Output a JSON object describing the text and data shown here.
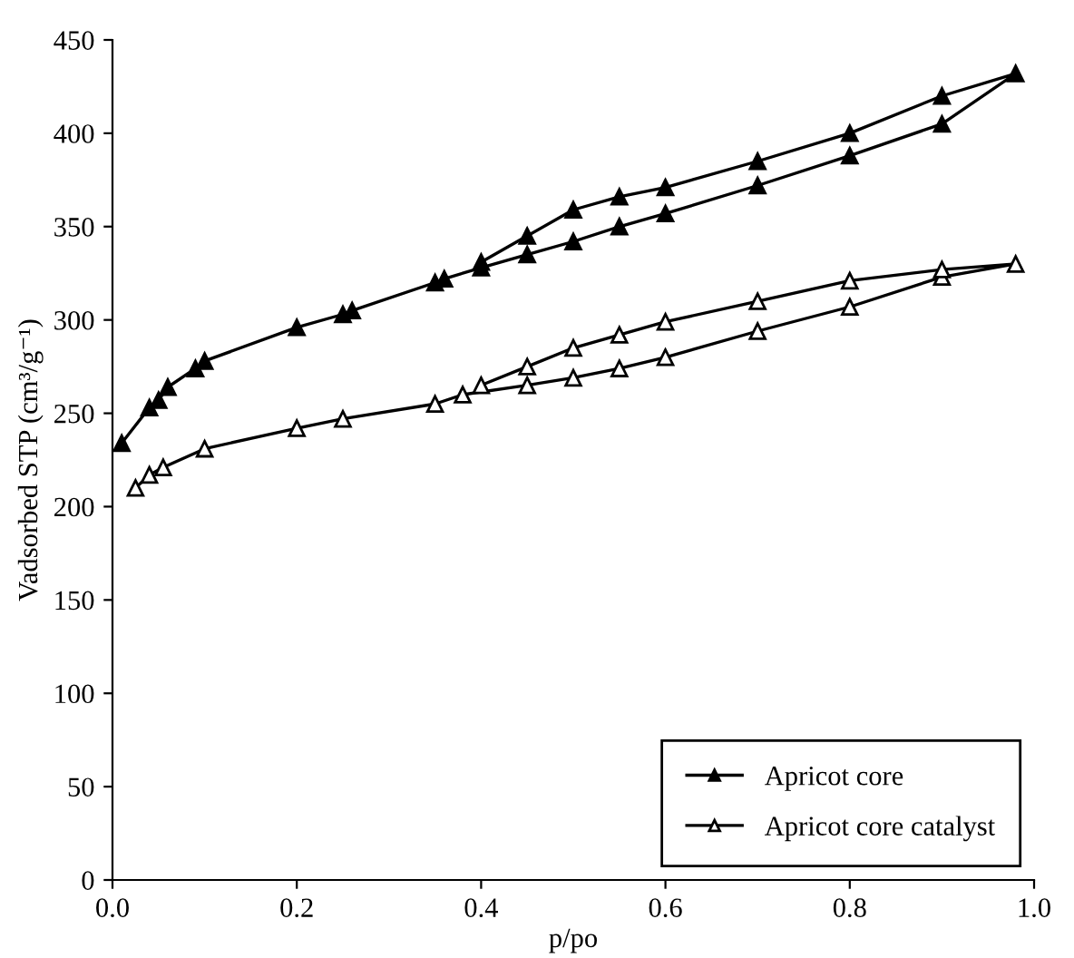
{
  "chart_data": {
    "type": "line",
    "xlabel": "p/po",
    "ylabel": "Vadsorbed STP (cm³/g⁻¹)",
    "xlim": [
      0,
      1
    ],
    "xticks": [
      {
        "value": 0,
        "label": "0.0"
      },
      {
        "value": 0.2,
        "label": "0.2"
      },
      {
        "value": 0.4,
        "label": "0.4"
      },
      {
        "value": 0.6,
        "label": "0.6"
      },
      {
        "value": 0.8,
        "label": "0.8"
      },
      {
        "value": 1,
        "label": "1.0"
      }
    ],
    "ylim": [
      0,
      450
    ],
    "yticks": [
      0,
      50,
      100,
      150,
      200,
      250,
      300,
      350,
      400,
      450
    ],
    "grid": false,
    "legend": "bottom right",
    "series": [
      {
        "name": "Apricot core",
        "color": "#000000",
        "marker": "triangle",
        "x": [
          0.01,
          0.04,
          0.05,
          0.06,
          0.09,
          0.1,
          0.2,
          0.25,
          0.26,
          0.35,
          0.36,
          0.4,
          0.45,
          0.5,
          0.55,
          0.6,
          0.7,
          0.8,
          0.9,
          0.98,
          0.9,
          0.8,
          0.7,
          0.6,
          0.55,
          0.5,
          0.45,
          0.4
        ],
        "values": [
          234,
          253,
          257,
          264,
          274,
          278,
          296,
          303,
          305,
          320,
          322,
          328,
          335,
          342,
          350,
          357,
          372,
          388,
          405,
          432,
          420,
          400,
          385,
          371,
          366,
          359,
          345,
          331
        ]
      },
      {
        "name": "Apricot core catalyst",
        "color": "#000000",
        "marker": "triangle_open",
        "x": [
          0.025,
          0.04,
          0.055,
          0.1,
          0.2,
          0.25,
          0.35,
          0.38,
          0.45,
          0.5,
          0.55,
          0.6,
          0.7,
          0.8,
          0.9,
          0.98,
          0.9,
          0.8,
          0.7,
          0.6,
          0.55,
          0.5,
          0.45,
          0.4
        ],
        "values": [
          210,
          217,
          221,
          231,
          242,
          247,
          255,
          260,
          265,
          269,
          274,
          280,
          294,
          307,
          323,
          330,
          327,
          321,
          310,
          299,
          292,
          285,
          275,
          265
        ]
      }
    ]
  }
}
